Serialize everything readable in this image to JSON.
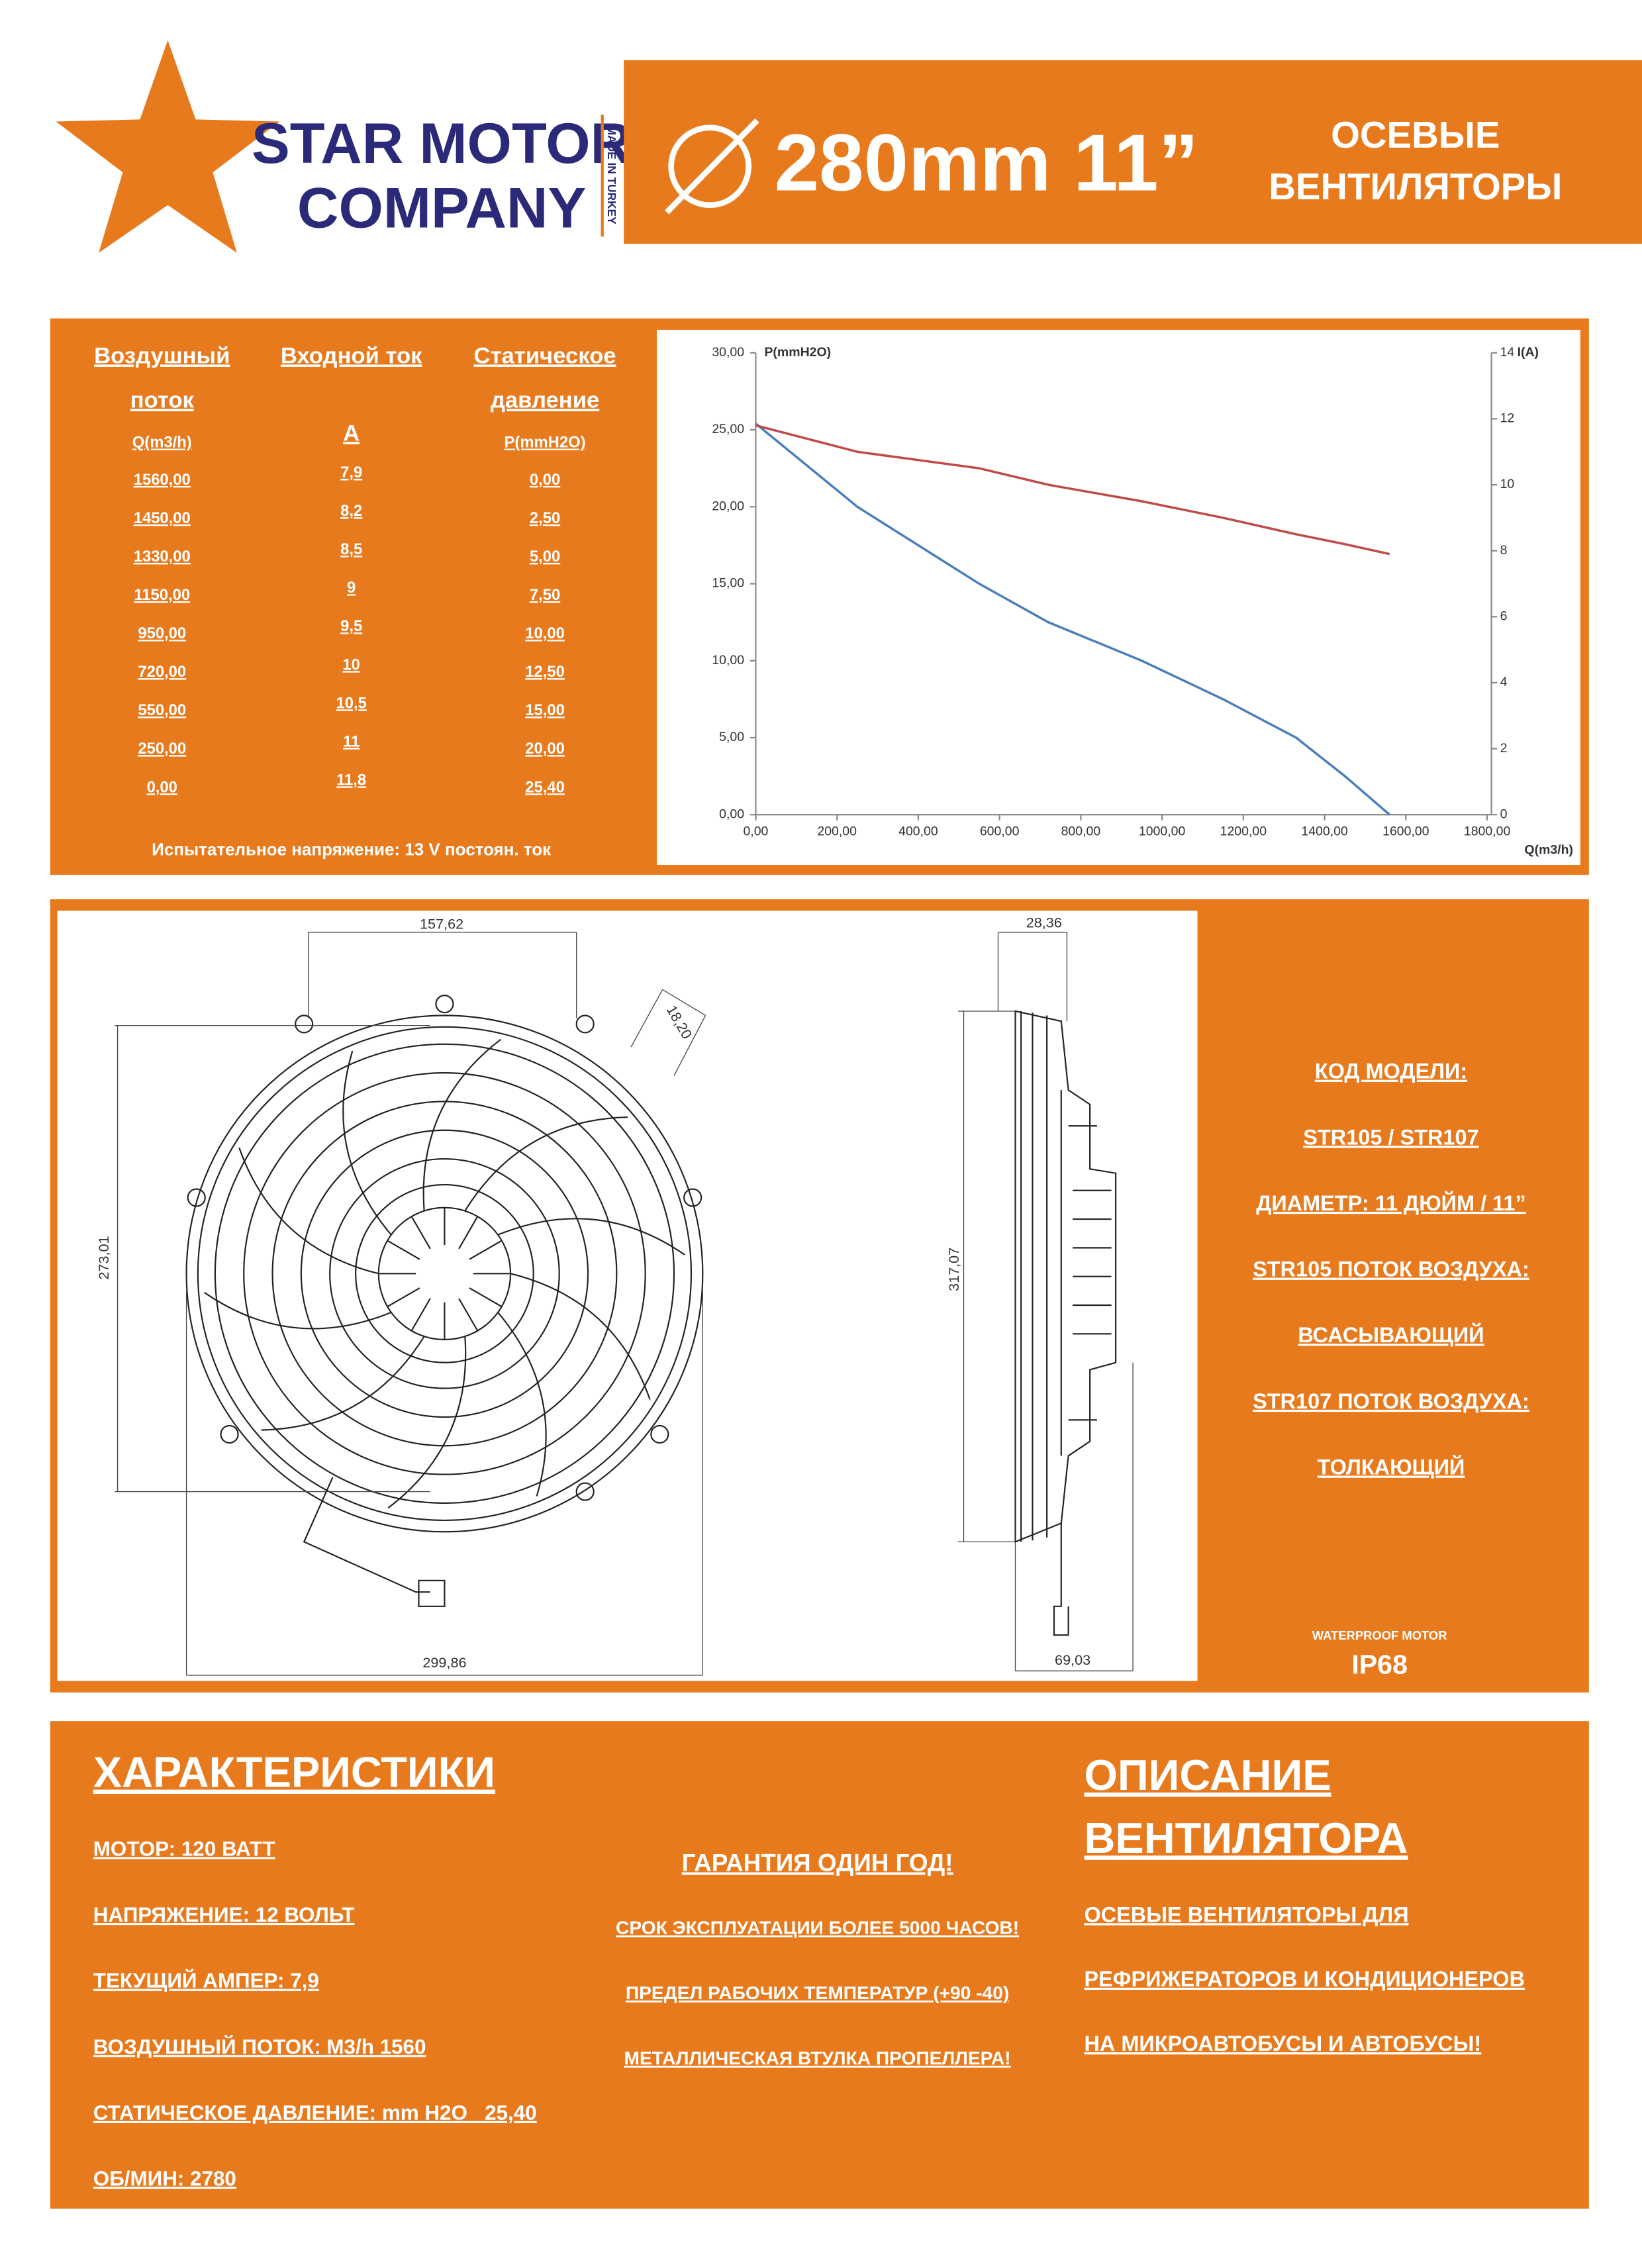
{
  "header": {
    "brand_line1": "STAR MOTOR",
    "brand_line2": "COMPANY",
    "made_in": "MADE IN TURKEY",
    "size": "280mm 11”",
    "title_line1": "ОСЕВЫЕ",
    "title_line2": "ВЕНТИЛЯТОРЫ"
  },
  "table": {
    "headers": [
      [
        "Воздушный",
        "поток"
      ],
      [
        "Входной ток"
      ],
      [
        "Статическое",
        "давление"
      ]
    ],
    "units": [
      "Q(m3/h)",
      "A",
      "P(mmH2O)"
    ],
    "rows": [
      [
        "1560,00",
        "7,9",
        "0,00"
      ],
      [
        "1450,00",
        "8,2",
        "2,50"
      ],
      [
        "1330,00",
        "8,5",
        "5,00"
      ],
      [
        "1150,00",
        "9",
        "7,50"
      ],
      [
        "950,00",
        "9,5",
        "10,00"
      ],
      [
        "720,00",
        "10",
        "12,50"
      ],
      [
        "550,00",
        "10,5",
        "15,00"
      ],
      [
        "250,00",
        "11",
        "20,00"
      ],
      [
        "0,00",
        "11,8",
        "25,40"
      ]
    ],
    "footer": "Испытательное напряжение: 13 V постоян. ток"
  },
  "chart_data": {
    "type": "line",
    "y_label": "P(mmH2O)",
    "y2_label": "I(A)",
    "x_label": "Q(m3/h)",
    "x": [
      0,
      250,
      550,
      720,
      950,
      1150,
      1330,
      1450,
      1560
    ],
    "series": [
      {
        "color": "#4a7ebb",
        "values": [
          25.4,
          20,
          15,
          12.5,
          10,
          7.5,
          5,
          2.5,
          0
        ]
      },
      {
        "color": "#be4b48",
        "axis": "y2",
        "values": [
          11.8,
          11,
          10.5,
          10,
          9.5,
          9,
          8.5,
          8.2,
          7.9
        ]
      }
    ],
    "xlim": [
      0,
      1800
    ],
    "xticks": [
      {
        "value": 0,
        "label": "0,00"
      },
      {
        "value": 200,
        "label": "200,00"
      },
      {
        "value": 400,
        "label": "400,00"
      },
      {
        "value": 600,
        "label": "600,00"
      },
      {
        "value": 800,
        "label": "800,00"
      },
      {
        "value": 1000,
        "label": "1000,00"
      },
      {
        "value": 1200,
        "label": "1200,00"
      },
      {
        "value": 1400,
        "label": "1400,00"
      },
      {
        "value": 1600,
        "label": "1600,00"
      },
      {
        "value": 1800,
        "label": "1800,00"
      }
    ],
    "ylim": [
      0,
      30
    ],
    "yticks": [
      {
        "value": 0,
        "label": "0,00"
      },
      {
        "value": 5,
        "label": "5,00"
      },
      {
        "value": 10,
        "label": "10,00"
      },
      {
        "value": 15,
        "label": "15,00"
      },
      {
        "value": 20,
        "label": "20,00"
      },
      {
        "value": 25,
        "label": "25,00"
      },
      {
        "value": 30,
        "label": "30,00"
      }
    ],
    "y2lim": [
      0,
      14
    ],
    "y2ticks": [
      0,
      2,
      4,
      6,
      8,
      10,
      12,
      14
    ]
  },
  "drawing": {
    "dim_top": "157,62",
    "dim_tab": "18,20",
    "dim_height": "273,01",
    "dim_width": "299,86",
    "dim_side_top": "28,36",
    "dim_side_height": "317,07",
    "dim_side_depth": "69,03"
  },
  "model_info": {
    "lines": [
      "КОД МОДЕЛИ:",
      "STR105 / STR107",
      "ДИАМЕТР: 11 ДЮЙМ / 11”",
      "STR105 ПОТОК ВОЗДУХА:",
      "ВСАСЫВАЮЩИЙ",
      "STR107 ПОТОК ВОЗДУХА:",
      "ТОЛКАЮЩИЙ"
    ],
    "waterproof": "WATERPROOF MOTOR",
    "ip": "IP68"
  },
  "specs": {
    "title": "ХАРАКТЕРИСТИКИ",
    "items": [
      "МОТОР: 120 ВАТТ",
      "НАПРЯЖЕНИЕ: 12 ВОЛЬТ",
      "ТЕКУЩИЙ АМПЕР: 7,9",
      "ВОЗДУШНЫЙ ПОТОК: M3/h 1560",
      "СТАТИЧЕСКОЕ ДАВЛЕНИЕ: mm H2O   25,40",
      "ОБ/МИН: 2780"
    ]
  },
  "features": [
    "ГАРАНТИЯ ОДИН ГОД!",
    "СРОК ЭКСПЛУАТАЦИИ БОЛЕЕ 5000 ЧАСОВ!",
    "ПРЕДЕЛ РАБОЧИХ ТЕМПЕРАТУР (+90 -40)",
    "МЕТАЛЛИЧЕСКАЯ ВТУЛКА ПРОПЕЛЛЕРА!"
  ],
  "description": {
    "title_line1": "ОПИСАНИЕ",
    "title_line2": "ВЕНТИЛЯТОРА",
    "lines": [
      "ОСЕВЫЕ ВЕНТИЛЯТОРЫ ДЛЯ",
      "РЕФРИЖЕРАТОРОВ И КОНДИЦИОНЕРОВ",
      "НА МИКРОАВТОБУСЫ И АВТОБУСЫ!"
    ]
  }
}
